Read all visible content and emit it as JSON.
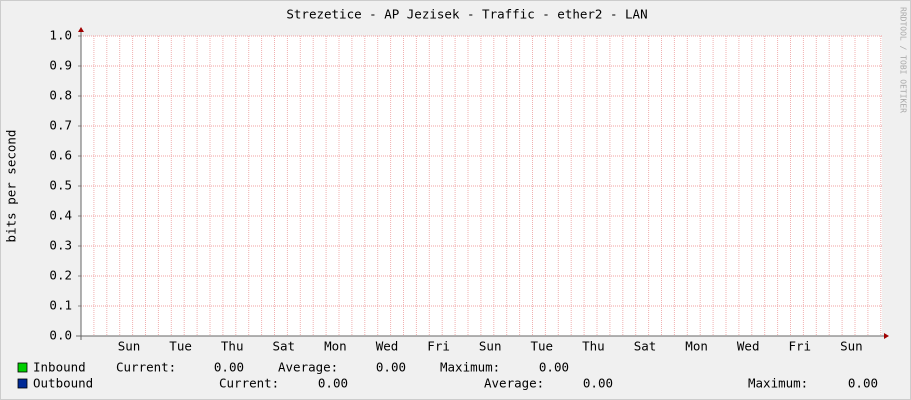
{
  "chart_data": {
    "type": "line",
    "title": "Strezetice - AP Jezisek - Traffic - ether2 - LAN",
    "y_label": "bits per second",
    "watermark": "RRDTOOL / TOBI OETIKER",
    "categories": [
      "Sun",
      "Tue",
      "Thu",
      "Sat",
      "Mon",
      "Wed",
      "Fri",
      "Sun",
      "Tue",
      "Thu",
      "Sat",
      "Mon",
      "Wed",
      "Fri",
      "Sun"
    ],
    "ylim": [
      0,
      1
    ],
    "yticks": [
      {
        "value": 0,
        "label": "0.0"
      },
      {
        "value": 0.1,
        "label": "0.1"
      },
      {
        "value": 0.2,
        "label": "0.2"
      },
      {
        "value": 0.3,
        "label": "0.3"
      },
      {
        "value": 0.4,
        "label": "0.4"
      },
      {
        "value": 0.5,
        "label": "0.5"
      },
      {
        "value": 0.6,
        "label": "0.6"
      },
      {
        "value": 0.7,
        "label": "0.7"
      },
      {
        "value": 0.8,
        "label": "0.8"
      },
      {
        "value": 0.9,
        "label": "0.9"
      },
      {
        "value": 1,
        "label": "1.0"
      }
    ],
    "grid": true,
    "series": [
      {
        "name": "Inbound",
        "color": "#00cf00",
        "stats": [
          {
            "name": "Current:",
            "value": 0,
            "label": "0.00"
          },
          {
            "name": "Average:",
            "value": 0,
            "label": "0.00"
          },
          {
            "name": "Maximum:",
            "value": 0,
            "label": "0.00"
          }
        ]
      },
      {
        "name": "Outbound",
        "color": "#002a97",
        "stats": [
          {
            "name": "Current:",
            "value": 0,
            "label": "0.00"
          },
          {
            "name": "Average:",
            "value": 0,
            "label": "0.00"
          },
          {
            "name": "Maximum:",
            "value": 0,
            "label": "0.00"
          }
        ]
      }
    ]
  }
}
